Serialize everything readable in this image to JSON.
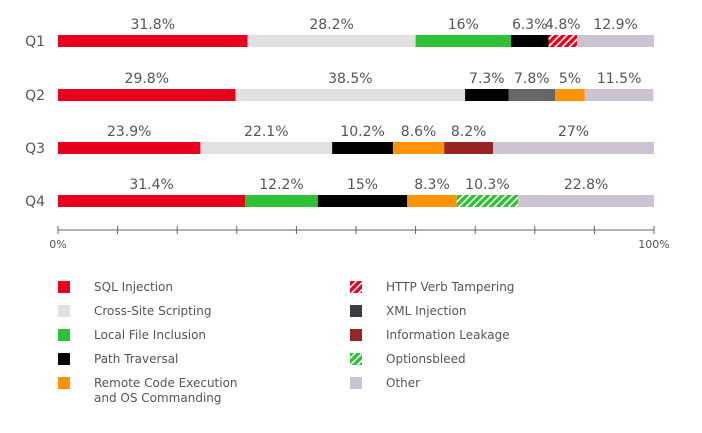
{
  "chart_data": {
    "type": "bar",
    "orientation": "horizontal-stacked",
    "categories": [
      "Q1",
      "Q2",
      "Q3",
      "Q4"
    ],
    "xlim": [
      0,
      100
    ],
    "x_tick_labels": [
      "0%",
      "100%"
    ],
    "x_tick_step": 10,
    "series_meta": [
      {
        "name": "SQL Injection",
        "color": "#e8001c",
        "pattern": false
      },
      {
        "name": "Cross-Site Scripting",
        "color": "#e1e1e3",
        "pattern": false
      },
      {
        "name": "Local File Inclusion",
        "color": "#2ec135",
        "pattern": false
      },
      {
        "name": "Path Traversal",
        "color": "#000000",
        "pattern": false
      },
      {
        "name": "Remote Code Execution\nand OS Commanding",
        "color": "#ff9205",
        "pattern": false
      },
      {
        "name": "HTTP Verb Tampering",
        "color": "#e8001c",
        "pattern": true
      },
      {
        "name": "XML Injection",
        "color": "#666666",
        "legend_color": "#3f3a44",
        "pattern": false
      },
      {
        "name": "Information Leakage",
        "color": "#962524",
        "pattern": false
      },
      {
        "name": "Optionsbleed",
        "color": "#2ec135",
        "pattern": true
      },
      {
        "name": "Other",
        "color": "#cbc3d1",
        "pattern": false
      }
    ],
    "rows": [
      {
        "category": "Q1",
        "segments": [
          {
            "series": "SQL Injection",
            "value": 31.8,
            "label": "31.8%"
          },
          {
            "series": "Cross-Site Scripting",
            "value": 28.2,
            "label": "28.2%"
          },
          {
            "series": "Local File Inclusion",
            "value": 16,
            "label": "16%"
          },
          {
            "series": "Path Traversal",
            "value": 6.3,
            "label": "6.3%"
          },
          {
            "series": "HTTP Verb Tampering",
            "value": 4.8,
            "label": "4.8%"
          },
          {
            "series": "Other",
            "value": 12.9,
            "label": "12.9%"
          }
        ]
      },
      {
        "category": "Q2",
        "segments": [
          {
            "series": "SQL Injection",
            "value": 29.8,
            "label": "29.8%"
          },
          {
            "series": "Cross-Site Scripting",
            "value": 38.5,
            "label": "38.5%"
          },
          {
            "series": "Path Traversal",
            "value": 7.3,
            "label": "7.3%"
          },
          {
            "series": "XML Injection",
            "value": 7.8,
            "label": "7.8%"
          },
          {
            "series": "Remote Code Execution\nand OS Commanding",
            "value": 5,
            "label": "5%"
          },
          {
            "series": "Other",
            "value": 11.5,
            "label": "11.5%"
          }
        ]
      },
      {
        "category": "Q3",
        "segments": [
          {
            "series": "SQL Injection",
            "value": 23.9,
            "label": "23.9%"
          },
          {
            "series": "Cross-Site Scripting",
            "value": 22.1,
            "label": "22.1%"
          },
          {
            "series": "Path Traversal",
            "value": 10.2,
            "label": "10.2%"
          },
          {
            "series": "Remote Code Execution\nand OS Commanding",
            "value": 8.6,
            "label": "8.6%"
          },
          {
            "series": "Information Leakage",
            "value": 8.2,
            "label": "8.2%"
          },
          {
            "series": "Other",
            "value": 27,
            "label": "27%"
          }
        ]
      },
      {
        "category": "Q4",
        "segments": [
          {
            "series": "SQL Injection",
            "value": 31.4,
            "label": "31.4%"
          },
          {
            "series": "Local File Inclusion",
            "value": 12.2,
            "label": "12.2%"
          },
          {
            "series": "Path Traversal",
            "value": 15,
            "label": "15%"
          },
          {
            "series": "Remote Code Execution\nand OS Commanding",
            "value": 8.3,
            "label": "8.3%"
          },
          {
            "series": "Optionsbleed",
            "value": 10.3,
            "label": "10.3%"
          },
          {
            "series": "Other",
            "value": 22.8,
            "label": "22.8%"
          }
        ]
      }
    ],
    "legend_position": "bottom",
    "grid": false
  }
}
